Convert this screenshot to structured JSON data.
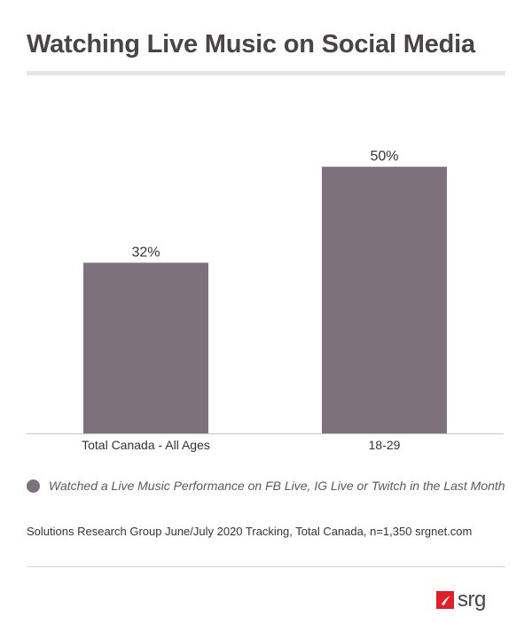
{
  "title": "Watching Live Music on Social Media",
  "chart_data": {
    "type": "bar",
    "categories": [
      "Total Canada - All Ages",
      "18-29"
    ],
    "series": [
      {
        "name": "Watched a Live Music Performance on FB Live, IG Live or Twitch in the Last Month",
        "values": [
          32,
          50
        ],
        "data_labels": [
          "32%",
          "50%"
        ],
        "color": "#7d727c"
      }
    ],
    "ylim": [
      0,
      58
    ],
    "grid": false,
    "legend_position": "bottom"
  },
  "source": "Solutions Research Group June/July 2020 Tracking, Total Canada, n=1,350  srgnet.com",
  "logo": {
    "text": "srg",
    "accent_color": "#e41e26"
  }
}
